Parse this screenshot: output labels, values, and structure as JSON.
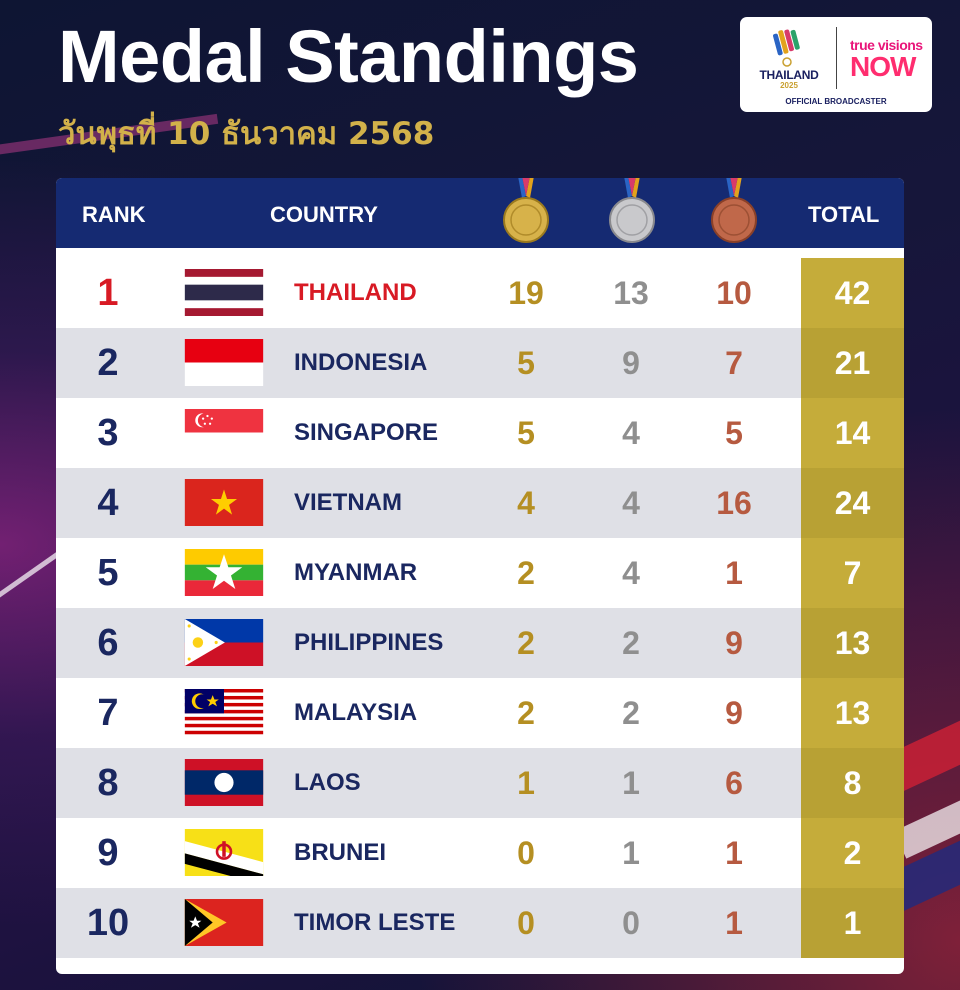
{
  "title": "Medal Standings",
  "subtitle": "วันพุธที่ 10 ธันวาคม 2568",
  "logo": {
    "country": "THAILAND",
    "year": "2025",
    "brand_top": "true visions",
    "brand_main": "NOW",
    "caption": "OFFICIAL BROADCASTER"
  },
  "headers": {
    "rank": "RANK",
    "country": "COUNTRY",
    "gold_icon": "gold-medal-icon",
    "silver_icon": "silver-medal-icon",
    "bronze_icon": "bronze-medal-icon",
    "total": "TOTAL"
  },
  "colors": {
    "header_bg": "#152a72",
    "total_column": "#c5ac3a",
    "gold": "#b58f22",
    "silver": "#8f8f8f",
    "bronze": "#b65a40",
    "leader": "#d81a24"
  },
  "rows": [
    {
      "rank": "1",
      "flag": "thailand-flag-icon",
      "country": "THAILAND",
      "gold": "19",
      "silver": "13",
      "bronze": "10",
      "total": "42"
    },
    {
      "rank": "2",
      "flag": "indonesia-flag-icon",
      "country": "INDONESIA",
      "gold": "5",
      "silver": "9",
      "bronze": "7",
      "total": "21"
    },
    {
      "rank": "3",
      "flag": "singapore-flag-icon",
      "country": "SINGAPORE",
      "gold": "5",
      "silver": "4",
      "bronze": "5",
      "total": "14"
    },
    {
      "rank": "4",
      "flag": "vietnam-flag-icon",
      "country": "VIETNAM",
      "gold": "4",
      "silver": "4",
      "bronze": "16",
      "total": "24"
    },
    {
      "rank": "5",
      "flag": "myanmar-flag-icon",
      "country": "MYANMAR",
      "gold": "2",
      "silver": "4",
      "bronze": "1",
      "total": "7"
    },
    {
      "rank": "6",
      "flag": "philippines-flag-icon",
      "country": "PHILIPPINES",
      "gold": "2",
      "silver": "2",
      "bronze": "9",
      "total": "13"
    },
    {
      "rank": "7",
      "flag": "malaysia-flag-icon",
      "country": "MALAYSIA",
      "gold": "2",
      "silver": "2",
      "bronze": "9",
      "total": "13"
    },
    {
      "rank": "8",
      "flag": "laos-flag-icon",
      "country": "LAOS",
      "gold": "1",
      "silver": "1",
      "bronze": "6",
      "total": "8"
    },
    {
      "rank": "9",
      "flag": "brunei-flag-icon",
      "country": "BRUNEI",
      "gold": "0",
      "silver": "1",
      "bronze": "1",
      "total": "2"
    },
    {
      "rank": "10",
      "flag": "timor-leste-flag-icon",
      "country": "TIMOR LESTE",
      "gold": "0",
      "silver": "0",
      "bronze": "1",
      "total": "1"
    }
  ]
}
